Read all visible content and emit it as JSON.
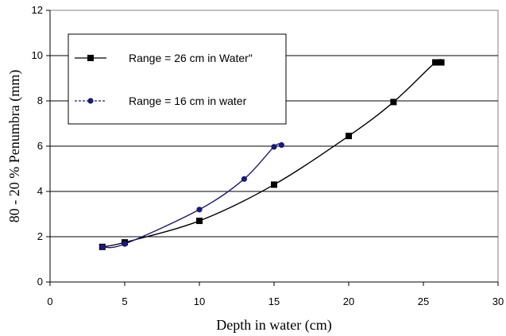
{
  "chart_data": {
    "type": "scatter",
    "title": "",
    "xlabel": "Depth in water (cm)",
    "ylabel": "80 - 20 % Penumbra   (mm)",
    "xlim": [
      0,
      30
    ],
    "ylim": [
      0,
      12
    ],
    "xticks": [
      "0",
      "5",
      "10",
      "15",
      "20",
      "25",
      "30"
    ],
    "yticks": [
      "0",
      "2",
      "4",
      "6",
      "8",
      "10",
      "12"
    ],
    "grid": "horizontal",
    "legend_position": "top-left",
    "series": [
      {
        "name": "Range = 26 cm in Water\"",
        "marker": "square",
        "line": "solid",
        "color": "#000000",
        "x": [
          3.5,
          5,
          10,
          15,
          20,
          23,
          25.8,
          26.2
        ],
        "y": [
          1.55,
          1.75,
          2.7,
          4.3,
          6.45,
          7.95,
          9.7,
          9.7
        ]
      },
      {
        "name": "Range = 16 cm in water",
        "marker": "circle",
        "line": "dashed",
        "color": "#1a1a7a",
        "x": [
          3.5,
          5,
          10,
          13,
          15,
          15.5
        ],
        "y": [
          1.55,
          1.68,
          3.2,
          4.55,
          5.97,
          6.05
        ]
      }
    ]
  }
}
